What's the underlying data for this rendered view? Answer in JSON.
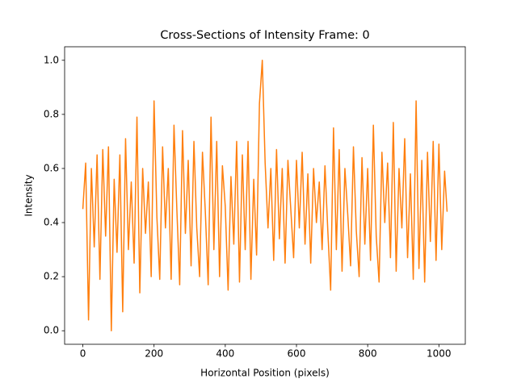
{
  "chart_data": {
    "type": "line",
    "title": "Cross-Sections of Intensity  Frame: 0",
    "xlabel": "Horizontal Position (pixels)",
    "ylabel": "Intensity",
    "x": [
      0,
      8,
      16,
      24,
      32,
      40,
      48,
      56,
      64,
      72,
      80,
      88,
      96,
      104,
      112,
      120,
      128,
      136,
      144,
      152,
      160,
      168,
      176,
      184,
      192,
      200,
      208,
      216,
      224,
      232,
      240,
      248,
      256,
      264,
      272,
      280,
      288,
      296,
      304,
      312,
      320,
      328,
      336,
      344,
      352,
      360,
      368,
      376,
      384,
      392,
      400,
      408,
      416,
      424,
      432,
      440,
      448,
      456,
      464,
      472,
      480,
      488,
      496,
      504,
      512,
      520,
      528,
      536,
      544,
      552,
      560,
      568,
      576,
      584,
      592,
      600,
      608,
      616,
      624,
      632,
      640,
      648,
      656,
      664,
      672,
      680,
      688,
      696,
      704,
      712,
      720,
      728,
      736,
      744,
      752,
      760,
      768,
      776,
      784,
      792,
      800,
      808,
      816,
      824,
      832,
      840,
      848,
      856,
      864,
      872,
      880,
      888,
      896,
      904,
      912,
      920,
      928,
      936,
      944,
      952,
      960,
      968,
      976,
      984,
      992,
      1000,
      1008,
      1016,
      1023
    ],
    "series": [
      {
        "color": "#ff7f0e",
        "values": [
          0.45,
          0.62,
          0.04,
          0.6,
          0.31,
          0.65,
          0.19,
          0.67,
          0.35,
          0.68,
          0.0,
          0.56,
          0.29,
          0.65,
          0.07,
          0.71,
          0.3,
          0.55,
          0.25,
          0.79,
          0.14,
          0.6,
          0.36,
          0.55,
          0.2,
          0.85,
          0.42,
          0.19,
          0.68,
          0.38,
          0.6,
          0.19,
          0.76,
          0.45,
          0.17,
          0.74,
          0.36,
          0.63,
          0.24,
          0.7,
          0.38,
          0.2,
          0.66,
          0.44,
          0.17,
          0.79,
          0.3,
          0.7,
          0.2,
          0.61,
          0.46,
          0.15,
          0.57,
          0.32,
          0.7,
          0.18,
          0.65,
          0.3,
          0.7,
          0.19,
          0.56,
          0.28,
          0.84,
          1.0,
          0.62,
          0.38,
          0.6,
          0.26,
          0.67,
          0.34,
          0.6,
          0.25,
          0.63,
          0.45,
          0.27,
          0.63,
          0.38,
          0.66,
          0.32,
          0.58,
          0.25,
          0.6,
          0.4,
          0.55,
          0.3,
          0.61,
          0.37,
          0.15,
          0.75,
          0.3,
          0.67,
          0.22,
          0.6,
          0.43,
          0.24,
          0.68,
          0.37,
          0.2,
          0.64,
          0.32,
          0.6,
          0.26,
          0.76,
          0.35,
          0.18,
          0.66,
          0.4,
          0.62,
          0.27,
          0.77,
          0.22,
          0.6,
          0.38,
          0.71,
          0.27,
          0.58,
          0.19,
          0.85,
          0.23,
          0.63,
          0.18,
          0.66,
          0.33,
          0.7,
          0.26,
          0.69,
          0.3,
          0.59,
          0.44
        ]
      }
    ],
    "xlim": [
      -51.15,
      1074.15
    ],
    "xticks": [
      0,
      200,
      400,
      600,
      800,
      1000
    ],
    "ylim": [
      -0.05,
      1.05
    ],
    "yticks": [
      {
        "value": 0,
        "label": "0.0"
      },
      0.2,
      0.4,
      0.6,
      0.8,
      {
        "value": 1,
        "label": "1.0"
      }
    ]
  }
}
